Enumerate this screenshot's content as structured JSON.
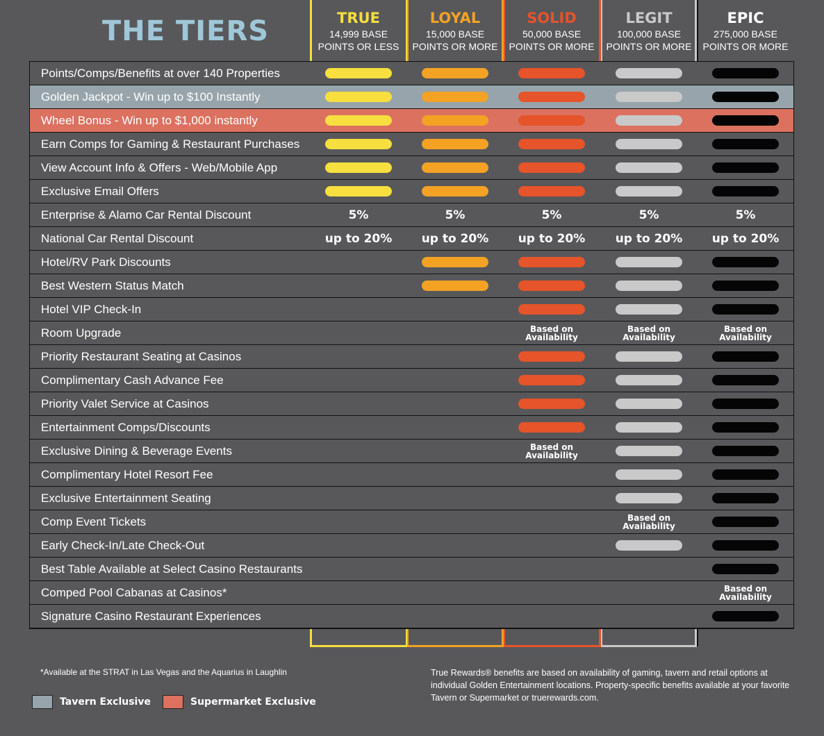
{
  "title": "THE TIERS",
  "colors": {
    "true": "#f6df3e",
    "loyal": "#f3a224",
    "solid": "#e5542a",
    "legit": "#c9c9c9",
    "epic": "#050505",
    "tavern": "#97a4ab",
    "supermarket": "#dc7160"
  },
  "tiers": [
    {
      "key": "true",
      "name": "TRUE",
      "line1": "14,999 BASE",
      "line2": "POINTS OR LESS",
      "name_color": "#f6df3e"
    },
    {
      "key": "loyal",
      "name": "LOYAL",
      "line1": "15,000 BASE",
      "line2": "POINTS OR MORE",
      "name_color": "#f3a224"
    },
    {
      "key": "solid",
      "name": "SOLID",
      "line1": "50,000 BASE",
      "line2": "POINTS OR MORE",
      "name_color": "#e5542a"
    },
    {
      "key": "legit",
      "name": "LEGIT",
      "line1": "100,000 BASE",
      "line2": "POINTS OR MORE",
      "name_color": "#c9c9c9"
    },
    {
      "key": "epic",
      "name": "EPIC",
      "line1": "275,000 BASE",
      "line2": "POINTS OR MORE",
      "name_color": "#ffffff"
    }
  ],
  "rows": [
    {
      "label": "Points/Comps/Benefits at over 140 Properties",
      "highlight": "",
      "cells": [
        "bar",
        "bar",
        "bar",
        "bar",
        "bar"
      ]
    },
    {
      "label": "Golden Jackpot - Win up to $100 Instantly",
      "highlight": "tavern",
      "cells": [
        "bar",
        "bar",
        "bar",
        "bar",
        "bar"
      ]
    },
    {
      "label": "Wheel Bonus - Win up to $1,000 instantly",
      "highlight": "supermarket",
      "cells": [
        "bar",
        "bar",
        "bar",
        "bar",
        "bar"
      ]
    },
    {
      "label": "Earn Comps for Gaming & Restaurant Purchases",
      "highlight": "",
      "cells": [
        "bar",
        "bar",
        "bar",
        "bar",
        "bar"
      ]
    },
    {
      "label": "View Account Info & Offers - Web/Mobile App",
      "highlight": "",
      "cells": [
        "bar",
        "bar",
        "bar",
        "bar",
        "bar"
      ]
    },
    {
      "label": "Exclusive Email Offers",
      "highlight": "",
      "cells": [
        "bar",
        "bar",
        "bar",
        "bar",
        "bar"
      ]
    },
    {
      "label": "Enterprise & Alamo Car Rental Discount",
      "highlight": "",
      "cells": [
        "t:5%",
        "t:5%",
        "t:5%",
        "t:5%",
        "t:5%"
      ]
    },
    {
      "label": "National Car Rental Discount",
      "highlight": "",
      "cells": [
        "t:up to 20%",
        "t:up to 20%",
        "t:up to 20%",
        "t:up to 20%",
        "t:up to 20%"
      ]
    },
    {
      "label": "Hotel/RV Park Discounts",
      "highlight": "",
      "cells": [
        "",
        "bar",
        "bar",
        "bar",
        "bar"
      ]
    },
    {
      "label": "Best Western Status Match",
      "highlight": "",
      "cells": [
        "",
        "bar",
        "bar",
        "bar",
        "bar"
      ]
    },
    {
      "label": "Hotel VIP Check-In",
      "highlight": "",
      "cells": [
        "",
        "",
        "bar",
        "bar",
        "bar"
      ]
    },
    {
      "label": "Room Upgrade",
      "highlight": "",
      "cells": [
        "",
        "",
        "avail",
        "avail",
        "avail"
      ]
    },
    {
      "label": "Priority Restaurant Seating at Casinos",
      "highlight": "",
      "cells": [
        "",
        "",
        "bar",
        "bar",
        "bar"
      ]
    },
    {
      "label": "Complimentary Cash Advance Fee",
      "highlight": "",
      "cells": [
        "",
        "",
        "bar",
        "bar",
        "bar"
      ]
    },
    {
      "label": "Priority Valet Service at Casinos",
      "highlight": "",
      "cells": [
        "",
        "",
        "bar",
        "bar",
        "bar"
      ]
    },
    {
      "label": "Entertainment Comps/Discounts",
      "highlight": "",
      "cells": [
        "",
        "",
        "bar",
        "bar",
        "bar"
      ]
    },
    {
      "label": "Exclusive Dining & Beverage Events",
      "highlight": "",
      "cells": [
        "",
        "",
        "avail",
        "bar",
        "bar"
      ]
    },
    {
      "label": "Complimentary Hotel Resort Fee",
      "highlight": "",
      "cells": [
        "",
        "",
        "",
        "bar",
        "bar"
      ]
    },
    {
      "label": "Exclusive Entertainment Seating",
      "highlight": "",
      "cells": [
        "",
        "",
        "",
        "bar",
        "bar"
      ]
    },
    {
      "label": "Comp Event Tickets",
      "highlight": "",
      "cells": [
        "",
        "",
        "",
        "avail",
        "bar"
      ]
    },
    {
      "label": "Early Check-In/Late Check-Out",
      "highlight": "",
      "cells": [
        "",
        "",
        "",
        "bar",
        "bar"
      ]
    },
    {
      "label": "Best Table Available at Select Casino Restaurants",
      "highlight": "",
      "cells": [
        "",
        "",
        "",
        "",
        "bar"
      ]
    },
    {
      "label": "Comped Pool Cabanas at Casinos*",
      "highlight": "",
      "cells": [
        "",
        "",
        "",
        "",
        "avail"
      ]
    },
    {
      "label": "Signature Casino Restaurant Experiences",
      "highlight": "",
      "cells": [
        "",
        "",
        "",
        "",
        "bar"
      ]
    }
  ],
  "availability": {
    "line1": "Based on",
    "line2": "Availability"
  },
  "footnote": "*Available at the STRAT in Las Vegas and the Aquarius in Laughlin",
  "legend": {
    "tavern": "Tavern Exclusive",
    "supermarket": "Supermarket Exclusive"
  },
  "disclaimer": "True Rewards® benefits are based on availability of gaming, tavern and retail options at individual Golden Entertainment locations. Property-specific benefits available at your favorite Tavern or Supermarket or truerewards.com."
}
